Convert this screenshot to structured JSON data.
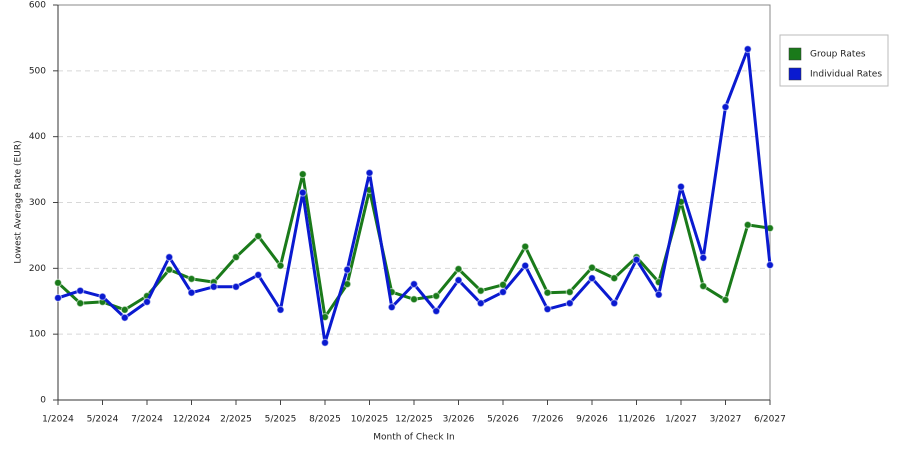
{
  "chart_data": {
    "type": "line",
    "x_label": "Month of Check In",
    "y_label": "Lowest Average Rate (EUR)",
    "categories": [
      "1/2024",
      null,
      "5/2024",
      null,
      "7/2024",
      null,
      "12/2024",
      null,
      "2/2025",
      null,
      "5/2025",
      null,
      "8/2025",
      null,
      "10/2025",
      null,
      "12/2025",
      null,
      "3/2026",
      null,
      "5/2026",
      null,
      "7/2026",
      null,
      "9/2026",
      null,
      "11/2026",
      null,
      "1/2027",
      null,
      "3/2027",
      null,
      "6/2027"
    ],
    "series": [
      {
        "name": "Group Rates",
        "color": "#1a7a1a",
        "values": [
          178,
          147,
          149,
          137,
          158,
          198,
          184,
          179,
          217,
          249,
          204,
          343,
          126,
          176,
          319,
          164,
          153,
          158,
          199,
          166,
          175,
          233,
          163,
          164,
          201,
          185,
          217,
          179,
          301,
          173,
          152,
          266,
          261
        ]
      },
      {
        "name": "Individual Rates",
        "color": "#0a1ad0",
        "values": [
          155,
          166,
          157,
          125,
          149,
          217,
          163,
          172,
          172,
          190,
          137,
          315,
          87,
          198,
          345,
          141,
          176,
          135,
          182,
          147,
          164,
          204,
          138,
          147,
          185,
          147,
          213,
          160,
          324,
          216,
          445,
          533,
          205
        ]
      }
    ],
    "ylim": [
      0,
      600
    ],
    "yticks": [
      0,
      100,
      200,
      300,
      400,
      500,
      600
    ],
    "grid": true,
    "legend": "right"
  }
}
